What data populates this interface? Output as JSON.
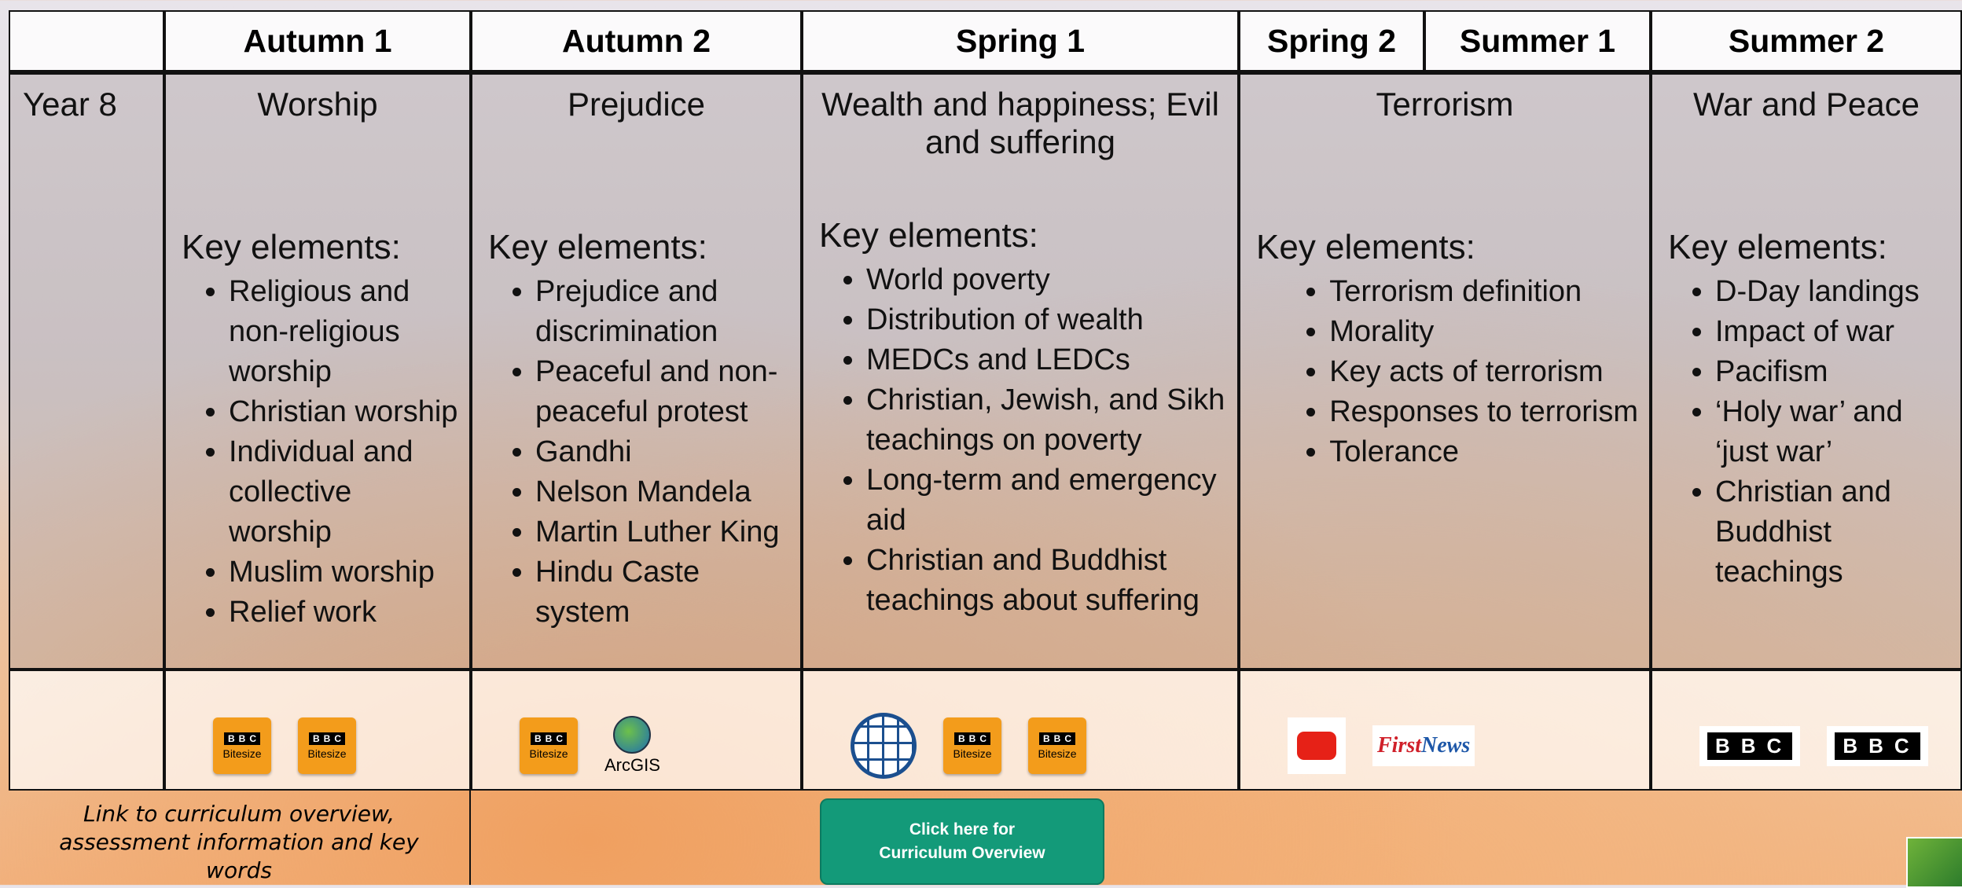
{
  "header": {
    "columns": [
      "Autumn 1",
      "Autumn 2",
      "Spring 1",
      "Spring 2",
      "Summer 1",
      "Summer 2"
    ]
  },
  "row": {
    "label": "Year 8",
    "units": [
      {
        "topic": "Worship",
        "key_heading": "Key elements:",
        "points": [
          "Religious and non-religious worship",
          "Christian worship",
          "Individual and collective worship",
          "Muslim worship",
          "Relief work"
        ]
      },
      {
        "topic": "Prejudice",
        "key_heading": "Key elements:",
        "points": [
          "Prejudice and discrimination",
          "Peaceful and non-peaceful protest",
          "Gandhi",
          "Nelson Mandela",
          "Martin Luther King",
          "Hindu Caste system"
        ]
      },
      {
        "topic": "Wealth and happiness; Evil and suffering",
        "key_heading": "Key elements:",
        "points": [
          "World poverty",
          "Distribution of wealth",
          "MEDCs and LEDCs",
          "Christian, Jewish, and Sikh teachings on poverty",
          "Long-term and emergency aid",
          "Christian and Buddhist teachings about suffering"
        ]
      },
      {
        "topic": "Terrorism",
        "key_heading": "Key elements:",
        "points": [
          "Terrorism definition",
          "Morality",
          "Key acts of terrorism",
          "Responses to terrorism",
          "Tolerance"
        ]
      },
      {
        "topic": "War and Peace",
        "key_heading": "Key elements:",
        "points": [
          "D-Day landings",
          "Impact of war",
          "Pacifism",
          "‘Holy war’ and ‘just war’",
          "Christian and Buddhist teachings"
        ]
      }
    ]
  },
  "resources": [
    [
      {
        "type": "bitesize",
        "brand": "BBC",
        "label": "Bitesize"
      },
      {
        "type": "bitesize",
        "brand": "BBC",
        "label": "Bitesize"
      }
    ],
    [
      {
        "type": "bitesize",
        "brand": "BBC",
        "label": "Bitesize"
      },
      {
        "type": "arcgis",
        "label": "ArcGIS"
      }
    ],
    [
      {
        "type": "globe"
      },
      {
        "type": "bitesize",
        "brand": "BBC",
        "label": "Bitesize"
      },
      {
        "type": "bitesize",
        "brand": "BBC",
        "label": "Bitesize"
      }
    ],
    [
      {
        "type": "youtube"
      },
      {
        "type": "firstnews",
        "parts": [
          "First",
          "News"
        ]
      }
    ],
    [
      {
        "type": "bbc",
        "brand": "BBC"
      },
      {
        "type": "bbc",
        "brand": "BBC"
      }
    ]
  ],
  "footer": {
    "link_text": "Link  to curriculum overview, assessment information and key words",
    "button": [
      "Click here for",
      "Curriculum Overview"
    ]
  }
}
